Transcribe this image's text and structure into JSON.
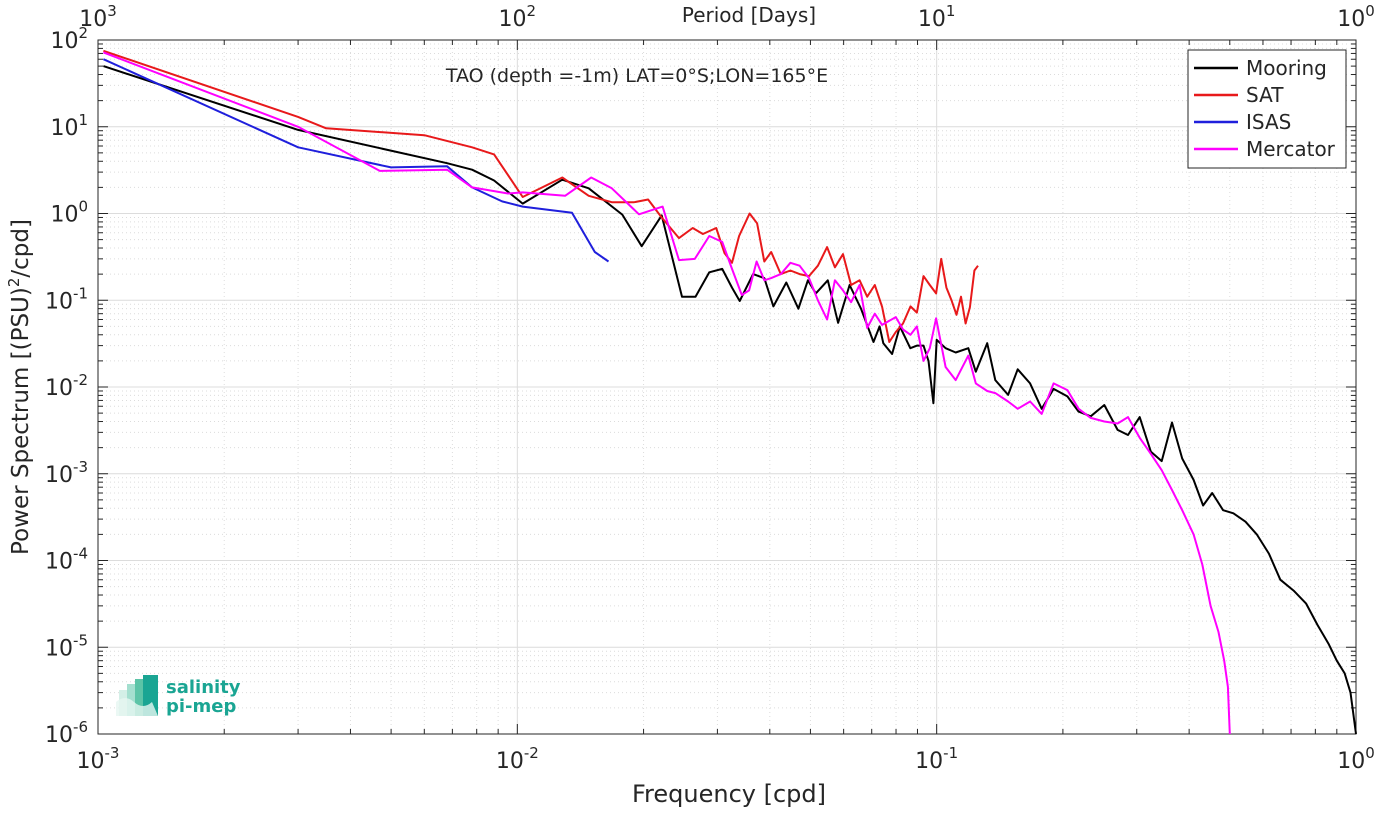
{
  "chart_data": {
    "type": "line",
    "title": "TAO (depth =-1m) LAT=0°S;LON=165°E",
    "xlabel": "Frequency [cpd]",
    "ylabel": "Power Spectrum [(PSU)",
    "ylabel_sup": "2",
    "ylabel_tail": "/cpd]",
    "top_xlabel": "Period [Days]",
    "xscale": "log",
    "yscale": "log",
    "xlim": [
      0.001,
      1
    ],
    "ylim": [
      1e-06,
      100
    ],
    "grid": true,
    "legend_position": "top-right",
    "x_ticks": [
      {
        "value": 0.001,
        "base": "10",
        "exp": "-3"
      },
      {
        "value": 0.01,
        "base": "10",
        "exp": "-2"
      },
      {
        "value": 0.1,
        "base": "10",
        "exp": "-1"
      },
      {
        "value": 1,
        "base": "10",
        "exp": "0"
      }
    ],
    "top_ticks": [
      {
        "value": 0.001,
        "base": "10",
        "exp": "3"
      },
      {
        "value": 0.01,
        "base": "10",
        "exp": "2"
      },
      {
        "value": 0.1,
        "base": "10",
        "exp": "1"
      },
      {
        "value": 1,
        "base": "10",
        "exp": "0"
      }
    ],
    "y_ticks": [
      {
        "value": 100,
        "base": "10",
        "exp": "2"
      },
      {
        "value": 10,
        "base": "10",
        "exp": "1"
      },
      {
        "value": 1,
        "base": "10",
        "exp": "0"
      },
      {
        "value": 0.1,
        "base": "10",
        "exp": "-1"
      },
      {
        "value": 0.01,
        "base": "10",
        "exp": "-2"
      },
      {
        "value": 0.001,
        "base": "10",
        "exp": "-3"
      },
      {
        "value": 0.0001,
        "base": "10",
        "exp": "-4"
      },
      {
        "value": 1e-05,
        "base": "10",
        "exp": "-5"
      },
      {
        "value": 1e-06,
        "base": "10",
        "exp": "-6"
      }
    ],
    "series": [
      {
        "name": "Mooring",
        "color": "#000000",
        "x": [
          0.00103,
          0.003,
          0.0068,
          0.0078,
          0.0088,
          0.0103,
          0.0128,
          0.0148,
          0.0178,
          0.0198,
          0.0221,
          0.0247,
          0.0266,
          0.0287,
          0.0308,
          0.0325,
          0.0339,
          0.0365,
          0.0388,
          0.0408,
          0.0438,
          0.0468,
          0.0493,
          0.0515,
          0.055,
          0.0582,
          0.062,
          0.066,
          0.0707,
          0.0731,
          0.0746,
          0.0783,
          0.0817,
          0.0865,
          0.0898,
          0.093,
          0.0956,
          0.0982,
          0.1,
          0.105,
          0.111,
          0.119,
          0.124,
          0.132,
          0.138,
          0.148,
          0.156,
          0.167,
          0.178,
          0.19,
          0.205,
          0.218,
          0.233,
          0.251,
          0.27,
          0.286,
          0.305,
          0.324,
          0.344,
          0.364,
          0.385,
          0.41,
          0.432,
          0.454,
          0.482,
          0.51,
          0.545,
          0.58,
          0.62,
          0.66,
          0.71,
          0.76,
          0.81,
          0.86,
          0.9,
          0.94,
          0.97,
          1.0
        ],
        "y": [
          50,
          9.2,
          3.8,
          3.2,
          2.4,
          1.3,
          2.45,
          1.95,
          0.97,
          0.42,
          0.95,
          0.11,
          0.11,
          0.21,
          0.23,
          0.14,
          0.098,
          0.2,
          0.18,
          0.085,
          0.16,
          0.08,
          0.17,
          0.12,
          0.17,
          0.055,
          0.15,
          0.08,
          0.033,
          0.05,
          0.032,
          0.024,
          0.05,
          0.028,
          0.03,
          0.03,
          0.02,
          0.0065,
          0.035,
          0.028,
          0.025,
          0.028,
          0.015,
          0.032,
          0.012,
          0.0081,
          0.016,
          0.011,
          0.0056,
          0.0095,
          0.0078,
          0.0052,
          0.0046,
          0.0062,
          0.0032,
          0.0028,
          0.0045,
          0.0018,
          0.0014,
          0.0039,
          0.0015,
          0.00085,
          0.00043,
          0.0006,
          0.00038,
          0.00035,
          0.00028,
          0.0002,
          0.00012,
          6e-05,
          4.5e-05,
          3.2e-05,
          1.8e-05,
          1.1e-05,
          7e-06,
          5e-06,
          3e-06,
          1e-06
        ]
      },
      {
        "name": "SAT",
        "color": "#e8191b",
        "x": [
          0.00103,
          0.003,
          0.0035,
          0.006,
          0.0078,
          0.0088,
          0.0103,
          0.0128,
          0.0148,
          0.0168,
          0.019,
          0.0205,
          0.0221,
          0.0243,
          0.0262,
          0.0277,
          0.0298,
          0.0312,
          0.0325,
          0.0338,
          0.0358,
          0.0373,
          0.0388,
          0.0403,
          0.0425,
          0.0448,
          0.0471,
          0.0496,
          0.0521,
          0.0548,
          0.0572,
          0.0598,
          0.0625,
          0.0655,
          0.0683,
          0.0712,
          0.0741,
          0.0771,
          0.0799,
          0.0831,
          0.0866,
          0.0897,
          0.093,
          0.0963,
          0.0997,
          0.1025,
          0.1055,
          0.1085,
          0.1115,
          0.1143,
          0.1172,
          0.12,
          0.123,
          0.1255
        ],
        "y": [
          75,
          13,
          9.6,
          8.0,
          5.8,
          4.8,
          1.55,
          2.6,
          1.6,
          1.35,
          1.35,
          1.45,
          0.9,
          0.52,
          0.68,
          0.58,
          0.68,
          0.35,
          0.27,
          0.55,
          1.0,
          0.77,
          0.28,
          0.36,
          0.2,
          0.22,
          0.2,
          0.19,
          0.25,
          0.41,
          0.24,
          0.34,
          0.15,
          0.17,
          0.11,
          0.15,
          0.084,
          0.033,
          0.043,
          0.054,
          0.085,
          0.072,
          0.19,
          0.15,
          0.12,
          0.3,
          0.14,
          0.1,
          0.068,
          0.11,
          0.054,
          0.083,
          0.22,
          0.25
        ]
      },
      {
        "name": "ISAS",
        "color": "#1f1fdc",
        "x": [
          0.00103,
          0.003,
          0.005,
          0.0068,
          0.0078,
          0.0092,
          0.0103,
          0.0135,
          0.0153,
          0.0165
        ],
        "y": [
          60,
          5.8,
          3.4,
          3.5,
          2.0,
          1.38,
          1.2,
          1.02,
          0.36,
          0.28
        ]
      },
      {
        "name": "Mercator",
        "color": "#ff00ff",
        "x": [
          0.00103,
          0.003,
          0.0047,
          0.0068,
          0.0078,
          0.0095,
          0.0103,
          0.013,
          0.015,
          0.0168,
          0.0195,
          0.0222,
          0.0243,
          0.0265,
          0.0287,
          0.0308,
          0.0325,
          0.0343,
          0.0357,
          0.0372,
          0.0388,
          0.0403,
          0.0425,
          0.0448,
          0.0471,
          0.0496,
          0.0521,
          0.0548,
          0.0572,
          0.0598,
          0.0625,
          0.0655,
          0.0683,
          0.0712,
          0.0741,
          0.0771,
          0.0799,
          0.0831,
          0.0866,
          0.0897,
          0.093,
          0.0963,
          0.0997,
          0.105,
          0.111,
          0.119,
          0.124,
          0.132,
          0.138,
          0.148,
          0.156,
          0.167,
          0.178,
          0.19,
          0.205,
          0.218,
          0.233,
          0.251,
          0.27,
          0.286,
          0.305,
          0.324,
          0.344,
          0.364,
          0.385,
          0.41,
          0.43,
          0.45,
          0.47,
          0.485,
          0.495,
          0.5
        ],
        "y": [
          72,
          10,
          3.1,
          3.2,
          2.0,
          1.7,
          1.75,
          1.6,
          2.6,
          1.95,
          0.98,
          1.2,
          0.29,
          0.3,
          0.55,
          0.47,
          0.23,
          0.115,
          0.13,
          0.28,
          0.17,
          0.18,
          0.2,
          0.27,
          0.25,
          0.18,
          0.1,
          0.06,
          0.17,
          0.13,
          0.095,
          0.15,
          0.048,
          0.07,
          0.052,
          0.058,
          0.064,
          0.046,
          0.04,
          0.05,
          0.02,
          0.028,
          0.062,
          0.017,
          0.012,
          0.023,
          0.011,
          0.009,
          0.0085,
          0.0068,
          0.0056,
          0.0068,
          0.0049,
          0.011,
          0.0092,
          0.0056,
          0.0044,
          0.004,
          0.0038,
          0.0045,
          0.0026,
          0.0017,
          0.0011,
          0.00065,
          0.00038,
          0.0002,
          9e-05,
          3e-05,
          1.5e-05,
          7e-06,
          3.5e-06,
          1e-06
        ]
      }
    ]
  },
  "logo": {
    "line1": "salinity",
    "line2": "pi-mep",
    "color": "#1aa593"
  }
}
